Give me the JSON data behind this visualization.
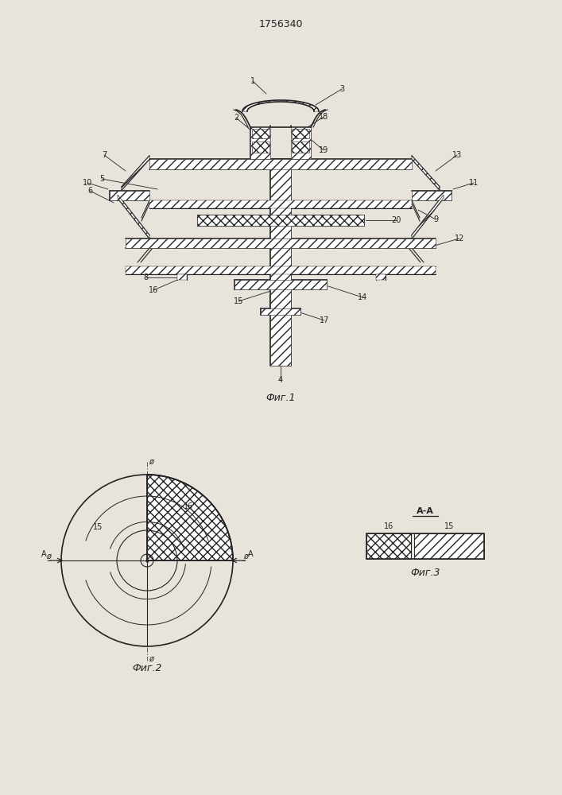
{
  "title": "1756340",
  "fig1_caption": "Фиг.1",
  "fig2_caption": "Фиг.2",
  "fig3_caption": "Фиг.3",
  "bg_color": "#e8e4dc",
  "line_color": "#222222",
  "font_size_title": 9,
  "font_size_label": 7,
  "font_size_caption": 9
}
